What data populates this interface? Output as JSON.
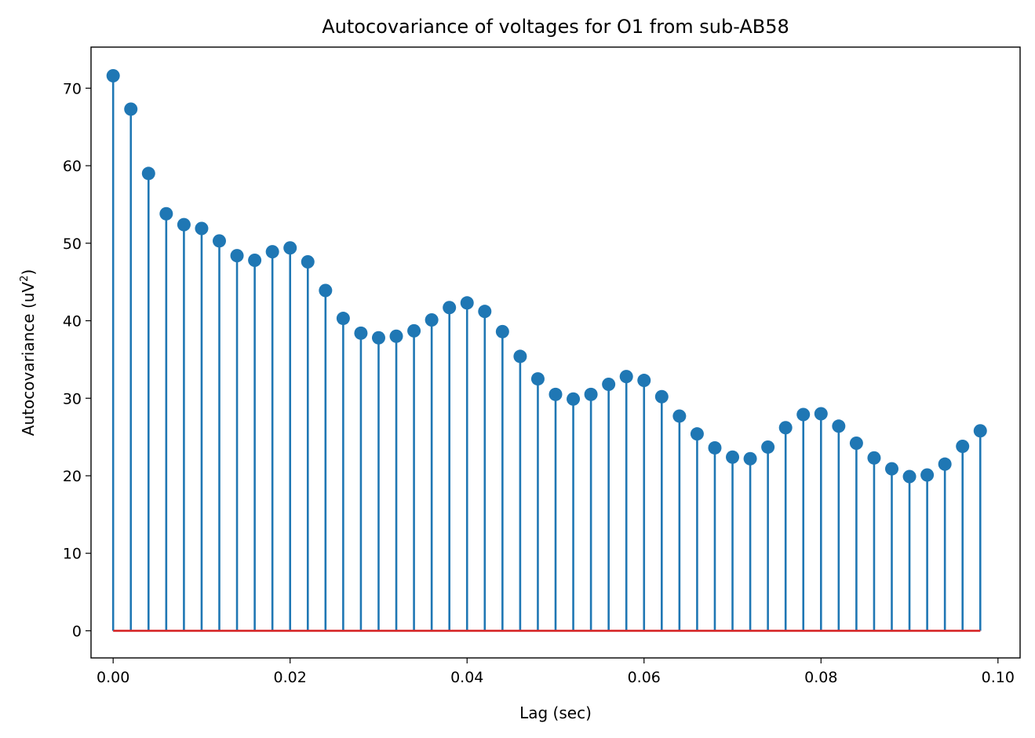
{
  "chart_data": {
    "type": "stem",
    "title": "Autocovariance of voltages for O1 from sub-AB58",
    "xlabel": "Lag (sec)",
    "ylabel_main": "Autocovariance (uV",
    "ylabel_sup": "2",
    "ylabel_end": ")",
    "xlim": [
      -0.0025,
      0.1025
    ],
    "ylim": [
      -3.5,
      75.3
    ],
    "xticks": [
      0.0,
      0.02,
      0.04,
      0.06,
      0.08,
      0.1
    ],
    "xtick_labels": [
      "0.00",
      "0.02",
      "0.04",
      "0.06",
      "0.08",
      "0.10"
    ],
    "yticks": [
      0,
      10,
      20,
      30,
      40,
      50,
      60,
      70
    ],
    "ytick_labels": [
      "0",
      "10",
      "20",
      "30",
      "40",
      "50",
      "60",
      "70"
    ],
    "baseline": 0,
    "colors": {
      "stem": "#1f77b4",
      "marker": "#1f77b4",
      "baseline": "#d62728"
    },
    "x": [
      0.0,
      0.002,
      0.004,
      0.006,
      0.008,
      0.01,
      0.012,
      0.014,
      0.016,
      0.018,
      0.02,
      0.022,
      0.024,
      0.026,
      0.028,
      0.03,
      0.032,
      0.034,
      0.036,
      0.038,
      0.04,
      0.042,
      0.044,
      0.046,
      0.048,
      0.05,
      0.052,
      0.054,
      0.056,
      0.058,
      0.06,
      0.062,
      0.064,
      0.066,
      0.068,
      0.07,
      0.072,
      0.074,
      0.076,
      0.078,
      0.08,
      0.082,
      0.084,
      0.086,
      0.088,
      0.09,
      0.092,
      0.094,
      0.096,
      0.098
    ],
    "y": [
      71.6,
      67.3,
      59.0,
      53.8,
      52.4,
      51.9,
      50.3,
      48.4,
      47.8,
      48.9,
      49.4,
      47.6,
      43.9,
      40.3,
      38.4,
      37.8,
      38.0,
      38.7,
      40.1,
      41.7,
      42.3,
      41.2,
      38.6,
      35.4,
      32.5,
      30.5,
      29.9,
      30.5,
      31.8,
      32.8,
      32.3,
      30.2,
      27.7,
      25.4,
      23.6,
      22.4,
      22.2,
      23.7,
      26.2,
      27.9,
      28.0,
      26.4,
      24.2,
      22.3,
      20.9,
      19.9,
      20.1,
      21.5,
      23.8,
      25.8
    ]
  }
}
